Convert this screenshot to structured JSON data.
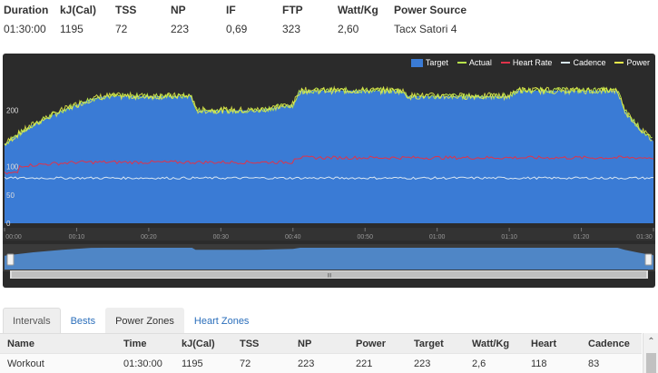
{
  "summary": {
    "duration_label": "Duration",
    "duration": "01:30:00",
    "kj_label": "kJ(Cal)",
    "kj": "1195",
    "tss_label": "TSS",
    "tss": "72",
    "np_label": "NP",
    "np": "223",
    "if_label": "IF",
    "if": "0,69",
    "ftp_label": "FTP",
    "ftp": "323",
    "wkg_label": "Watt/Kg",
    "wkg": "2,60",
    "source_label": "Power Source",
    "source": "Tacx Satori 4"
  },
  "legend": {
    "target": "Target",
    "actual": "Actual",
    "heart_rate": "Heart Rate",
    "cadence": "Cadence",
    "power": "Power"
  },
  "colors": {
    "target": "#3a7bd5",
    "actual": "#b7e34a",
    "heart_rate": "#e0334a",
    "cadence": "#d8e6f2",
    "power": "#e8f04a",
    "panel": "#2b2b2b",
    "link": "#2a6ebb"
  },
  "y_axis": {
    "ticks": [
      "200",
      "100",
      "50",
      "0"
    ]
  },
  "time_axis": {
    "ticks": [
      "00:00",
      "00:10",
      "00:20",
      "00:30",
      "00:40",
      "00:50",
      "01:00",
      "01:10",
      "01:20",
      "01:30"
    ]
  },
  "tabs": [
    {
      "label": "Intervals",
      "active": true
    },
    {
      "label": "Bests",
      "active": false
    },
    {
      "label": "Power Zones",
      "active": false
    },
    {
      "label": "Heart Zones",
      "active": false
    }
  ],
  "table": {
    "headers": [
      "Name",
      "Time",
      "kJ(Cal)",
      "TSS",
      "NP",
      "Power",
      "Target",
      "Watt/Kg",
      "Heart",
      "Cadence"
    ],
    "rows": [
      [
        "Workout",
        "01:30:00",
        "1195",
        "72",
        "223",
        "221",
        "223",
        "2,6",
        "118",
        "83"
      ]
    ]
  },
  "chart_data": {
    "type": "area",
    "x_unit": "minutes",
    "xlim": [
      0,
      90
    ],
    "target_profile": [
      [
        0,
        140
      ],
      [
        1,
        150
      ],
      [
        4,
        175
      ],
      [
        8,
        200
      ],
      [
        12,
        220
      ],
      [
        14,
        225
      ],
      [
        26,
        225
      ],
      [
        26.5,
        200
      ],
      [
        35,
        200
      ],
      [
        40,
        210
      ],
      [
        41,
        235
      ],
      [
        55,
        235
      ],
      [
        56,
        225
      ],
      [
        70,
        225
      ],
      [
        71,
        235
      ],
      [
        85,
        235
      ],
      [
        86,
        200
      ],
      [
        88,
        170
      ],
      [
        90,
        145
      ]
    ],
    "heart_rate_level": 100,
    "cadence_level": 80
  }
}
